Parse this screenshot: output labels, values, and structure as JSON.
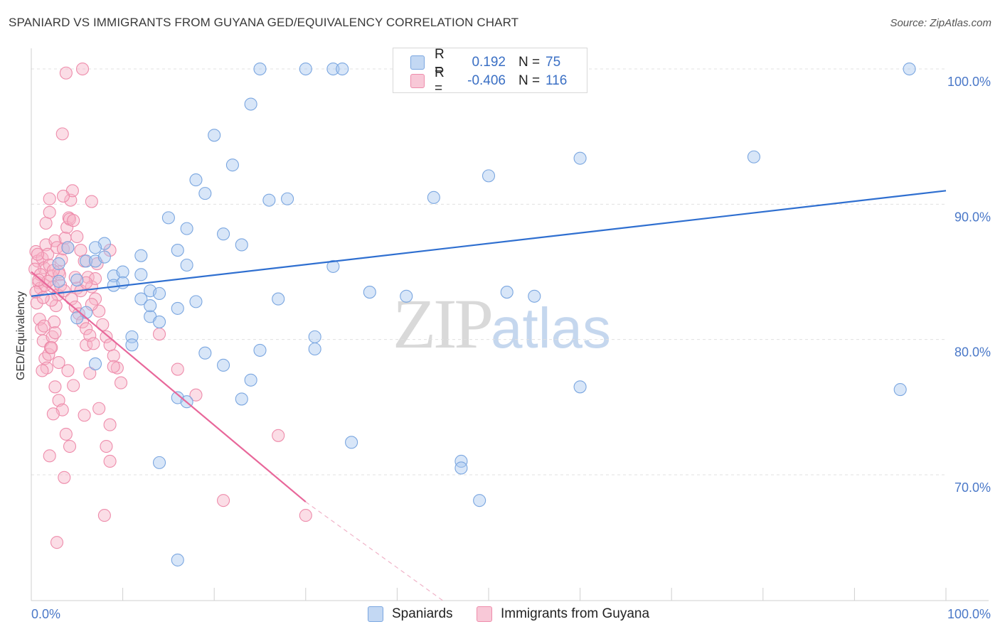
{
  "header": {
    "title": "SPANIARD VS IMMIGRANTS FROM GUYANA GED/EQUIVALENCY CORRELATION CHART",
    "source": "Source: ZipAtlas.com"
  },
  "watermark": {
    "zip": "ZIP",
    "atlas": "atlas"
  },
  "legend": {
    "rows": [
      {
        "r_label": "R =",
        "r_value": "0.192",
        "n_label": "N =",
        "n_value": "75"
      },
      {
        "r_label": "R =",
        "r_value": "-0.406",
        "n_label": "N =",
        "n_value": "116"
      }
    ]
  },
  "bottom_legend": {
    "series0": "Spaniards",
    "series1": "Immigrants from Guyana"
  },
  "colors": {
    "blue_fill": "#a9c8f0",
    "blue_stroke": "#7aa6e0",
    "blue_line": "#2f6fd0",
    "pink_fill": "#f6b3c8",
    "pink_stroke": "#ee8cab",
    "pink_line": "#e8679a",
    "tick": "#4a78c8",
    "grid": "#e0e0e0"
  },
  "chart_data": {
    "type": "scatter",
    "title": "SPANIARD VS IMMIGRANTS FROM GUYANA GED/EQUIVALENCY CORRELATION CHART",
    "xlabel": "",
    "ylabel": "GED/Equivalency",
    "xlim": [
      0,
      100
    ],
    "ylim": [
      60.7,
      101
    ],
    "x_tick_labels": [
      {
        "value": 0,
        "label": "0.0%"
      },
      {
        "value": 100,
        "label": "100.0%"
      }
    ],
    "y_tick_labels": [
      {
        "value": 70,
        "label": "70.0%"
      },
      {
        "value": 80,
        "label": "80.0%"
      },
      {
        "value": 90,
        "label": "90.0%"
      },
      {
        "value": 100,
        "label": "100.0%"
      }
    ],
    "grid": true,
    "legend_position": "top-center",
    "series": [
      {
        "name": "Spaniards",
        "r": 0.192,
        "n": 75,
        "trend": {
          "x0": 0,
          "y0": 83.2,
          "x1": 100,
          "y1": 91.0
        },
        "points": [
          [
            4,
            86.8
          ],
          [
            3,
            85.6
          ],
          [
            6,
            85.8
          ],
          [
            7,
            85.8
          ],
          [
            8,
            87.1
          ],
          [
            8,
            86.1
          ],
          [
            9,
            84.7
          ],
          [
            9,
            84.0
          ],
          [
            10,
            85.0
          ],
          [
            10,
            84.2
          ],
          [
            11,
            80.2
          ],
          [
            11,
            79.6
          ],
          [
            12,
            83.0
          ],
          [
            12,
            86.2
          ],
          [
            12,
            84.8
          ],
          [
            13,
            81.7
          ],
          [
            13,
            83.6
          ],
          [
            14,
            81.3
          ],
          [
            14,
            83.4
          ],
          [
            15,
            89.0
          ],
          [
            16,
            86.6
          ],
          [
            17,
            88.2
          ],
          [
            17,
            85.5
          ],
          [
            18,
            82.8
          ],
          [
            18,
            91.8
          ],
          [
            19,
            90.8
          ],
          [
            20,
            95.1
          ],
          [
            21,
            87.8
          ],
          [
            21,
            78.1
          ],
          [
            22,
            92.9
          ],
          [
            23,
            87.0
          ],
          [
            23,
            75.6
          ],
          [
            24,
            77.0
          ],
          [
            24,
            97.4
          ],
          [
            25,
            79.2
          ],
          [
            25,
            100.0
          ],
          [
            26,
            90.3
          ],
          [
            27,
            83.0
          ],
          [
            30,
            100.0
          ],
          [
            31,
            80.2
          ],
          [
            31,
            79.3
          ],
          [
            33,
            100.0
          ],
          [
            33,
            85.4
          ],
          [
            35,
            72.4
          ],
          [
            37,
            83.5
          ],
          [
            41,
            83.2
          ],
          [
            44,
            90.5
          ],
          [
            47,
            71.0
          ],
          [
            47,
            70.5
          ],
          [
            49,
            68.1
          ],
          [
            50,
            92.1
          ],
          [
            52,
            83.5
          ],
          [
            55,
            83.2
          ],
          [
            60,
            93.4
          ],
          [
            79,
            93.5
          ],
          [
            96,
            100.0
          ],
          [
            95,
            76.3
          ],
          [
            16,
            75.7
          ],
          [
            17,
            75.4
          ],
          [
            14,
            70.9
          ],
          [
            16,
            63.7
          ],
          [
            5,
            84.4
          ],
          [
            3,
            84.3
          ],
          [
            6,
            82.0
          ],
          [
            7,
            78.2
          ],
          [
            5,
            81.6
          ],
          [
            44,
            99.8
          ],
          [
            49,
            100.0
          ],
          [
            16,
            82.3
          ],
          [
            28,
            90.4
          ],
          [
            60,
            76.5
          ],
          [
            7,
            86.8
          ],
          [
            19,
            79.0
          ],
          [
            13,
            82.5
          ],
          [
            34,
            100.0
          ]
        ]
      },
      {
        "name": "Immigrants from Guyana",
        "r": -0.406,
        "n": 116,
        "trend": {
          "x0": 0,
          "y0": 85.0,
          "x1": 30,
          "y1": 68.0,
          "dash_x1": 45,
          "dash_y1": 60.7
        },
        "points": [
          [
            0.5,
            86.5
          ],
          [
            0.7,
            85.8
          ],
          [
            0.8,
            84.2
          ],
          [
            1.0,
            83.8
          ],
          [
            1.2,
            86.0
          ],
          [
            1.4,
            85.3
          ],
          [
            1.5,
            84.0
          ],
          [
            1.6,
            87.0
          ],
          [
            1.8,
            86.3
          ],
          [
            2.0,
            85.5
          ],
          [
            2.2,
            84.7
          ],
          [
            2.4,
            83.9
          ],
          [
            2.6,
            87.3
          ],
          [
            2.8,
            86.8
          ],
          [
            3.0,
            85.0
          ],
          [
            0.5,
            83.5
          ],
          [
            0.6,
            82.7
          ],
          [
            0.9,
            81.5
          ],
          [
            1.1,
            80.8
          ],
          [
            1.3,
            79.9
          ],
          [
            1.5,
            78.6
          ],
          [
            1.7,
            77.9
          ],
          [
            1.9,
            78.9
          ],
          [
            2.1,
            79.4
          ],
          [
            2.3,
            80.2
          ],
          [
            2.5,
            81.3
          ],
          [
            2.7,
            82.5
          ],
          [
            2.9,
            83.3
          ],
          [
            3.1,
            84.8
          ],
          [
            3.3,
            85.9
          ],
          [
            3.5,
            86.7
          ],
          [
            3.7,
            87.5
          ],
          [
            3.9,
            88.3
          ],
          [
            4.1,
            89.0
          ],
          [
            4.3,
            90.3
          ],
          [
            4.5,
            91.0
          ],
          [
            1.6,
            88.6
          ],
          [
            2.0,
            90.4
          ],
          [
            3.5,
            90.6
          ],
          [
            4.2,
            88.9
          ],
          [
            5.0,
            87.6
          ],
          [
            5.4,
            86.6
          ],
          [
            5.8,
            85.8
          ],
          [
            6.2,
            84.6
          ],
          [
            6.6,
            83.9
          ],
          [
            7.0,
            83.0
          ],
          [
            7.4,
            82.1
          ],
          [
            7.8,
            81.1
          ],
          [
            8.2,
            80.2
          ],
          [
            8.6,
            79.6
          ],
          [
            9.0,
            78.8
          ],
          [
            9.4,
            77.9
          ],
          [
            9.8,
            76.8
          ],
          [
            3.4,
            95.2
          ],
          [
            3.8,
            99.7
          ],
          [
            5.6,
            100.0
          ],
          [
            6.6,
            90.2
          ],
          [
            2.2,
            79.4
          ],
          [
            2.6,
            76.5
          ],
          [
            3.0,
            75.5
          ],
          [
            3.4,
            74.8
          ],
          [
            3.8,
            73.0
          ],
          [
            4.2,
            72.1
          ],
          [
            2.0,
            71.4
          ],
          [
            2.4,
            74.5
          ],
          [
            3.6,
            69.8
          ],
          [
            2.8,
            65.0
          ],
          [
            8.0,
            67.0
          ],
          [
            8.6,
            71.0
          ],
          [
            8.2,
            72.1
          ],
          [
            8.6,
            73.7
          ],
          [
            7.4,
            74.9
          ],
          [
            5.8,
            74.4
          ],
          [
            6.4,
            77.5
          ],
          [
            9.0,
            78.0
          ],
          [
            14.0,
            80.4
          ],
          [
            16.0,
            77.8
          ],
          [
            18.0,
            75.9
          ],
          [
            27.0,
            72.9
          ],
          [
            21.0,
            68.1
          ],
          [
            30.0,
            67.0
          ],
          [
            6.0,
            79.6
          ],
          [
            5.0,
            83.8
          ],
          [
            4.8,
            84.6
          ],
          [
            7.0,
            84.5
          ],
          [
            8.6,
            86.6
          ],
          [
            4.0,
            86.8
          ],
          [
            2.2,
            82.9
          ],
          [
            1.4,
            81.0
          ],
          [
            0.4,
            85.2
          ],
          [
            0.7,
            86.3
          ],
          [
            1.0,
            84.8
          ],
          [
            1.3,
            83.1
          ],
          [
            1.8,
            84.3
          ],
          [
            2.4,
            85.1
          ],
          [
            3.2,
            84.0
          ],
          [
            3.6,
            83.6
          ],
          [
            4.4,
            83.0
          ],
          [
            4.8,
            82.4
          ],
          [
            5.2,
            81.9
          ],
          [
            5.6,
            81.3
          ],
          [
            6.0,
            80.8
          ],
          [
            6.4,
            80.3
          ],
          [
            6.8,
            79.7
          ],
          [
            4.0,
            77.7
          ],
          [
            4.6,
            76.6
          ],
          [
            3.0,
            78.3
          ],
          [
            2.6,
            80.5
          ],
          [
            5.4,
            83.6
          ],
          [
            6.0,
            84.2
          ],
          [
            6.6,
            82.6
          ],
          [
            7.2,
            85.6
          ],
          [
            1.2,
            77.7
          ],
          [
            0.8,
            84.4
          ],
          [
            2.0,
            89.4
          ],
          [
            4.6,
            88.8
          ]
        ]
      }
    ]
  }
}
